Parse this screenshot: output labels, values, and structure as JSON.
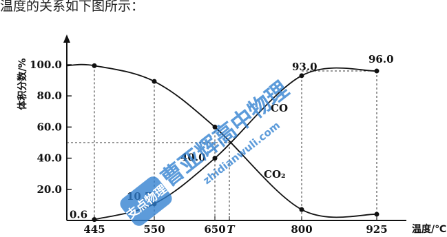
{
  "intro_text": "温度的关系如下图所示：",
  "chart_data": {
    "type": "line",
    "xlabel": "温度/℃",
    "ylabel": "体积分数/%",
    "x_ticks": [
      "445",
      "550",
      "650",
      "T",
      "800",
      "925"
    ],
    "y_ticks": [
      "20.0",
      "40.0",
      "60.0",
      "80.0",
      "100.0"
    ],
    "ylim": [
      0,
      100
    ],
    "grid": false,
    "series": [
      {
        "name": "CO",
        "points": [
          [
            445,
            0.6
          ],
          [
            550,
            10.7
          ],
          [
            650,
            40.0
          ],
          [
            800,
            93.0
          ],
          [
            925,
            96.0
          ]
        ]
      },
      {
        "name": "CO₂",
        "points": [
          [
            445,
            99.4
          ],
          [
            550,
            89.3
          ],
          [
            650,
            60.0
          ],
          [
            800,
            7.0
          ],
          [
            925,
            4.0
          ]
        ]
      }
    ],
    "annotations": [
      "0.6",
      "10.7",
      "40.0",
      "93.0",
      "96.0"
    ],
    "reference_level": 50
  },
  "watermark": {
    "line1": "曹亚辉高中物理",
    "line2": "zhidianwuli.com",
    "badge": "支点物理"
  }
}
